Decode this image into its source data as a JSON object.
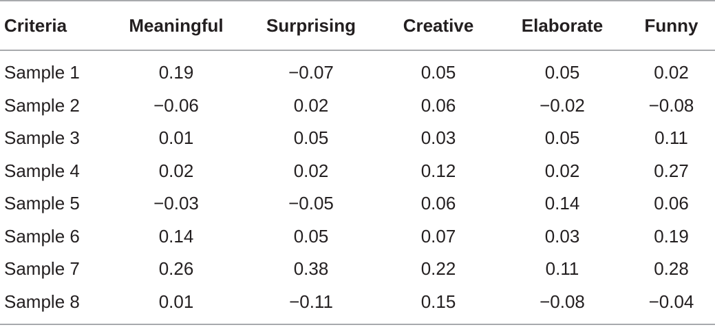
{
  "table": {
    "headers": [
      "Criteria",
      "Meaningful",
      "Surprising",
      "Creative",
      "Elaborate",
      "Funny"
    ],
    "rows": [
      [
        "Sample 1",
        "0.19",
        "−0.07",
        "0.05",
        "0.05",
        "0.02"
      ],
      [
        "Sample 2",
        "−0.06",
        "0.02",
        "0.06",
        "−0.02",
        "−0.08"
      ],
      [
        "Sample 3",
        "0.01",
        "0.05",
        "0.03",
        "0.05",
        "0.11"
      ],
      [
        "Sample 4",
        "0.02",
        "0.02",
        "0.12",
        "0.02",
        "0.27"
      ],
      [
        "Sample 5",
        "−0.03",
        "−0.05",
        "0.06",
        "0.14",
        "0.06"
      ],
      [
        "Sample 6",
        "0.14",
        "0.05",
        "0.07",
        "0.03",
        "0.19"
      ],
      [
        "Sample 7",
        "0.26",
        "0.38",
        "0.22",
        "0.11",
        "0.28"
      ],
      [
        "Sample 8",
        "0.01",
        "−0.11",
        "0.15",
        "−0.08",
        "−0.04"
      ]
    ]
  },
  "colors": {
    "text": "#231f20",
    "rule": "#a7a9ac",
    "background": "#ffffff"
  }
}
